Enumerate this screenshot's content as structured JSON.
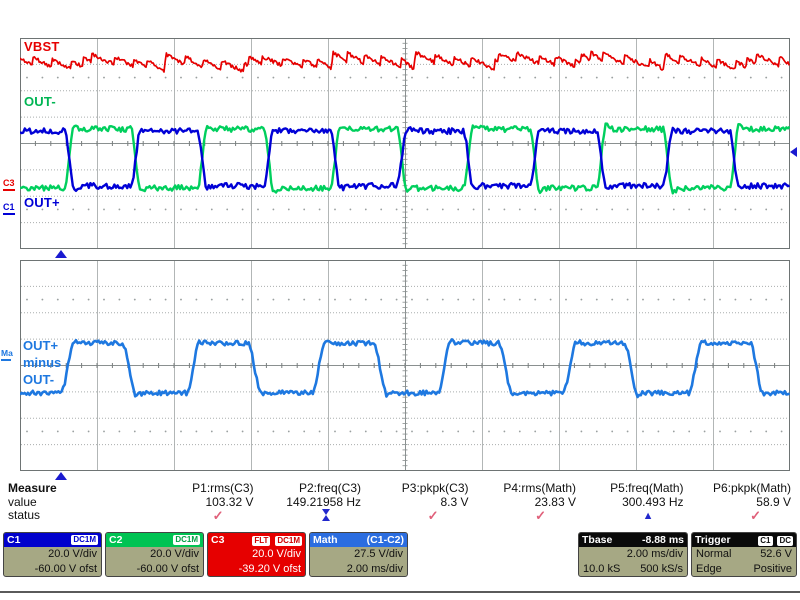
{
  "colors": {
    "c1_blue": "#0101d6",
    "c2_green": "#00cf5d",
    "c3_red": "#e60000",
    "math_blue": "#1e78e0",
    "c1_header": "#0101cd",
    "c2_header": "#00c353",
    "c3_box": "#e60000",
    "math_header": "#2b6de0",
    "black_header": "#0a0a0a",
    "panel_olive": "#a6a884",
    "status_ok_pink": "#e0607a",
    "status_info_blue": "#2228cc",
    "grid_gray": "#9aa0a0"
  },
  "trace_labels": {
    "vbst": "VBST",
    "out_minus": "OUT-",
    "out_plus": "OUT+",
    "math_line1": "OUT+",
    "math_line2": "minus",
    "math_line3": "OUT-"
  },
  "margin_markers": {
    "c3": "C3",
    "c1": "C1",
    "math": "Ma"
  },
  "measure": {
    "row_headers": [
      "Measure",
      "value",
      "status"
    ],
    "columns": [
      {
        "label": "P1:rms(C3)",
        "value": "103.32 V",
        "status": "check"
      },
      {
        "label": "P2:freq(C3)",
        "value": "149.21958 Hz",
        "status": "hourglass"
      },
      {
        "label": "P3:pkpk(C3)",
        "value": "8.3 V",
        "status": "check"
      },
      {
        "label": "P4:rms(Math)",
        "value": "23.83 V",
        "status": "check"
      },
      {
        "label": "P5:freq(Math)",
        "value": "300.493 Hz",
        "status": "warning"
      },
      {
        "label": "P6:pkpk(Math)",
        "value": "58.9 V",
        "status": "check"
      }
    ]
  },
  "channels": [
    {
      "id": "C1",
      "badges": [
        "DC1M"
      ],
      "line1": "20.0 V/div",
      "line2": "-60.00 V ofst"
    },
    {
      "id": "C2",
      "badges": [
        "DC1M"
      ],
      "line1": "20.0 V/div",
      "line2": "-60.00 V ofst"
    },
    {
      "id": "C3",
      "badges": [
        "FLT",
        "DC1M"
      ],
      "line1": "20.0 V/div",
      "line2": "-39.20 V ofst"
    },
    {
      "id": "Math",
      "subtitle": "(C1-C2)",
      "line1": "27.5 V/div",
      "line2": "2.00 ms/div"
    }
  ],
  "timebase": {
    "title": "Tbase",
    "delay": "-8.88 ms",
    "per_div": "2.00 ms/div",
    "samples": "10.0 kS",
    "rate": "500 kS/s"
  },
  "trigger": {
    "title": "Trigger",
    "badges": [
      "C1",
      "DC"
    ],
    "mode": "Normal",
    "level": "52.6 V",
    "type": "Edge",
    "slope": "Positive"
  },
  "waveforms": {
    "grid": {
      "cols": 10,
      "rows": 8,
      "time_per_div_ms": 2.0
    },
    "top": {
      "out_minus": {
        "kind": "square",
        "color_key": "c2_green",
        "high_div": 0.55,
        "low_div": -1.69,
        "period_div": 1.727,
        "first_rise_div": 1.44,
        "duty": 0.5,
        "edge_div": 0.13,
        "overshoot_div": 0.14,
        "noise_div": 0.055,
        "width": 2.4,
        "invert": true,
        "seed": 21
      },
      "out_plus": {
        "kind": "square",
        "color_key": "c1_blue",
        "high_div": 0.47,
        "low_div": -1.61,
        "period_div": 1.727,
        "first_rise_div": 1.44,
        "duty": 0.5,
        "edge_div": 0.13,
        "overshoot_div": 0.1,
        "noise_div": 0.055,
        "width": 2.4,
        "invert": false,
        "seed": 31
      },
      "vbst": {
        "kind": "saw",
        "color_key": "c3_red",
        "y_div": 3.45,
        "tooth_amp_div": 0.16,
        "env_amp_div": 0.17,
        "noise_div": 0.035,
        "width": 1.7,
        "seed": 11
      }
    },
    "bottom": {
      "math": {
        "kind": "square",
        "color_key": "math_blue",
        "high_div": 0.85,
        "low_div": -1.04,
        "period_div": 1.63,
        "first_rise_div": 0.53,
        "duty": 0.49,
        "edge_div": 0.18,
        "overshoot_div": 0.08,
        "noise_div": 0.045,
        "width": 2.6,
        "invert": false,
        "seed": 41
      }
    }
  }
}
